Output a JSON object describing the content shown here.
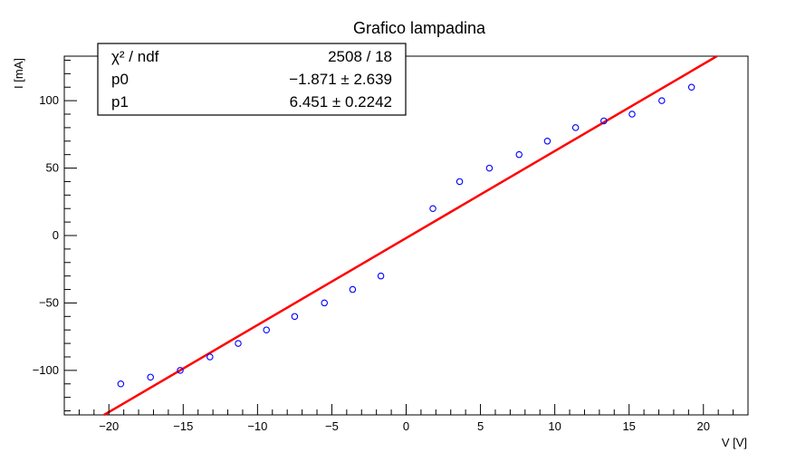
{
  "chart_data": {
    "type": "scatter",
    "title": "Grafico lampadina",
    "xlabel": "V [V]",
    "ylabel": "I [mA]",
    "xlim": [
      -23,
      23
    ],
    "ylim": [
      -133,
      133
    ],
    "x_ticks": [
      -20,
      -15,
      -10,
      -5,
      0,
      5,
      10,
      15,
      20
    ],
    "x_tick_labels": [
      "−20",
      "−15",
      "−10",
      "−5",
      "0",
      "5",
      "10",
      "15",
      "20"
    ],
    "y_ticks": [
      -100,
      -50,
      0,
      50,
      100
    ],
    "y_tick_labels": [
      "−100",
      "−50",
      "0",
      "50",
      "100"
    ],
    "grid": false,
    "series": [
      {
        "marker": "open-circle",
        "color": "#0000ff",
        "points": [
          {
            "x": -19.2,
            "y": -110
          },
          {
            "x": -17.2,
            "y": -105
          },
          {
            "x": -15.2,
            "y": -100
          },
          {
            "x": -13.2,
            "y": -90
          },
          {
            "x": -11.3,
            "y": -80
          },
          {
            "x": -9.4,
            "y": -70
          },
          {
            "x": -7.5,
            "y": -60
          },
          {
            "x": -5.5,
            "y": -50
          },
          {
            "x": -3.6,
            "y": -40
          },
          {
            "x": -1.7,
            "y": -30
          },
          {
            "x": 1.8,
            "y": 20
          },
          {
            "x": 3.6,
            "y": 40
          },
          {
            "x": 5.6,
            "y": 50
          },
          {
            "x": 7.6,
            "y": 60
          },
          {
            "x": 9.5,
            "y": 70
          },
          {
            "x": 11.4,
            "y": 80
          },
          {
            "x": 13.3,
            "y": 85
          },
          {
            "x": 15.2,
            "y": 90
          },
          {
            "x": 17.2,
            "y": 100
          },
          {
            "x": 19.2,
            "y": 110
          }
        ]
      }
    ],
    "fit": {
      "type": "line",
      "color": "#ff0000",
      "p0": -1.871,
      "p1": 6.451
    },
    "stats_box": {
      "rows": [
        {
          "label": "χ² / ndf",
          "value": "2508 / 18"
        },
        {
          "label": "p0",
          "value": "−1.871 ± 2.639"
        },
        {
          "label": "p1",
          "value": "6.451 ± 0.2242"
        }
      ]
    }
  }
}
